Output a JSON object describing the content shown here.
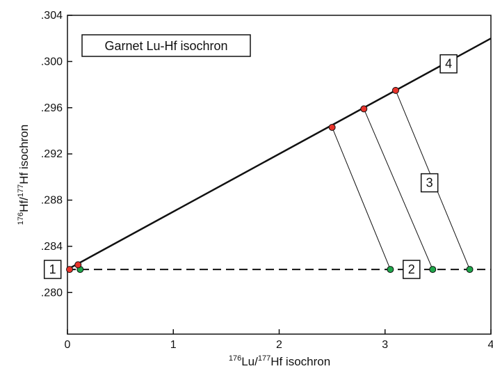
{
  "chart_data": {
    "type": "scatter",
    "title": "Garnet Lu-Hf isochron",
    "xlabel": {
      "sup1": "176",
      "base1": "Lu/",
      "sup2": "177",
      "base2": "Hf isochron"
    },
    "ylabel": {
      "sup1": "176",
      "base1": "Hf/",
      "sup2": "177",
      "base2": "Hf isochron"
    },
    "xlim": [
      0,
      4
    ],
    "ylim": [
      0.2764,
      0.304
    ],
    "x_ticks": [
      {
        "value": 0,
        "label": "0"
      },
      {
        "value": 1,
        "label": "1"
      },
      {
        "value": 2,
        "label": "2"
      },
      {
        "value": 3,
        "label": "3"
      },
      {
        "value": 4,
        "label": "4"
      }
    ],
    "y_ticks": [
      {
        "value": 0.28,
        "label": ".280"
      },
      {
        "value": 0.284,
        "label": ".284"
      },
      {
        "value": 0.288,
        "label": ".288"
      },
      {
        "value": 0.292,
        "label": ".292"
      },
      {
        "value": 0.296,
        "label": ".296"
      },
      {
        "value": 0.3,
        "label": ".300"
      },
      {
        "value": 0.304,
        "label": ".304"
      }
    ],
    "initial_ratio": 0.282,
    "isochron_line": {
      "x": [
        0,
        4
      ],
      "y": [
        0.282,
        0.302
      ]
    },
    "garnet_points": [
      {
        "x": 0.02,
        "y": 0.282
      },
      {
        "x": 0.1,
        "y": 0.2824
      },
      {
        "x": 2.5,
        "y": 0.2943
      },
      {
        "x": 2.8,
        "y": 0.2959
      },
      {
        "x": 3.1,
        "y": 0.2975
      }
    ],
    "initial_points": [
      {
        "x": 0.12,
        "y": 0.282
      },
      {
        "x": 3.05,
        "y": 0.282
      },
      {
        "x": 3.45,
        "y": 0.282
      },
      {
        "x": 3.8,
        "y": 0.282
      }
    ],
    "connectors": [
      {
        "from": [
          2.5,
          0.2943
        ],
        "to": [
          3.05,
          0.282
        ]
      },
      {
        "from": [
          2.8,
          0.2959
        ],
        "to": [
          3.45,
          0.282
        ]
      },
      {
        "from": [
          3.1,
          0.2975
        ],
        "to": [
          3.8,
          0.282
        ]
      }
    ],
    "annotations": [
      {
        "text": "1",
        "x": -0.14,
        "y": 0.282
      },
      {
        "text": "2",
        "x": 3.25,
        "y": 0.282
      },
      {
        "text": "3",
        "x": 3.42,
        "y": 0.2895
      },
      {
        "text": "4",
        "x": 3.6,
        "y": 0.2998
      }
    ],
    "colors": {
      "garnet": "#e8322a",
      "initial": "#1fa64a",
      "line": "#111111"
    }
  }
}
